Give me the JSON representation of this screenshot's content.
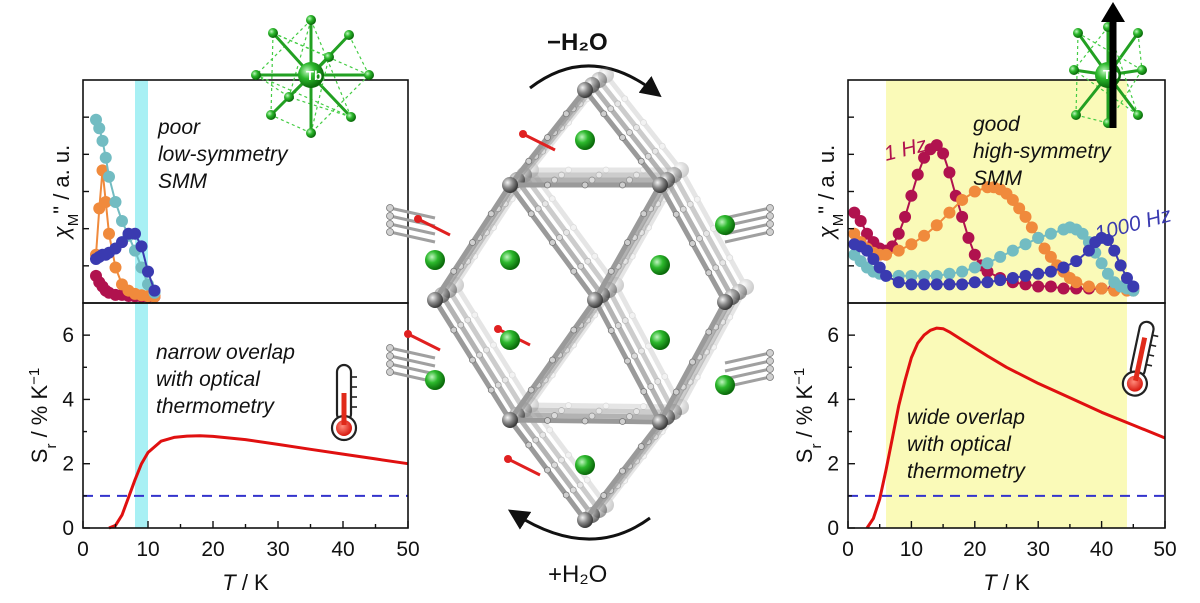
{
  "colors": {
    "freq_1hz": "#b0124e",
    "freq_mid": "#f08a3c",
    "freq_high_mid": "#72bcc2",
    "freq_1000hz": "#3a3ab0",
    "sr_curve": "#e01010",
    "threshold": "#3333cc",
    "left_band": "#a8f0f4",
    "right_band": "#fafab8",
    "tb_green": "#22b022",
    "framework_gray": "#888888"
  },
  "center": {
    "top_arrow_label": "−H₂O",
    "bottom_arrow_label": "+H₂O"
  },
  "left": {
    "chi_ylabel": "χM\" / a. u.",
    "chi_note": [
      "poor",
      "low-symmetry",
      "SMM"
    ],
    "sr_note": [
      "narrow overlap",
      "with optical",
      "thermometry"
    ],
    "tb_label": "Tb"
  },
  "right": {
    "chi_ylabel": "χM\" / a. u.",
    "chi_note": [
      "good",
      "high-symmetry",
      "SMM"
    ],
    "label_1hz": "1 Hz",
    "label_1000hz": "1000 Hz",
    "sr_note": [
      "wide overlap",
      "with optical",
      "thermometry"
    ],
    "tb_label": "Tb"
  },
  "chart_data": [
    {
      "type": "scatter",
      "panel": "left-top",
      "ylabel": "χM\" / a. u.",
      "xlim": [
        0,
        50
      ],
      "ylim": [
        0,
        1
      ],
      "shaded_x": [
        8,
        10
      ],
      "series": [
        {
          "x": [
            2,
            2.5,
            3,
            3.5,
            4,
            5,
            6,
            7,
            8,
            9,
            10,
            11
          ],
          "y": [
            0.1,
            0.07,
            0.05,
            0.03,
            0.02,
            0.01,
            0.01,
            0.005,
            0.003,
            0.002,
            0.001,
            0.001
          ],
          "color": "freq_1hz"
        },
        {
          "x": [
            2,
            2.5,
            3,
            3.5,
            4,
            5,
            6,
            7,
            8,
            9,
            10,
            11
          ],
          "y": [
            0.2,
            0.42,
            0.6,
            0.45,
            0.3,
            0.14,
            0.06,
            0.03,
            0.015,
            0.008,
            0.004,
            0.002
          ],
          "color": "freq_mid"
        },
        {
          "x": [
            2,
            2.5,
            3,
            3.5,
            4,
            5,
            6,
            7,
            8,
            9,
            10,
            11
          ],
          "y": [
            0.84,
            0.8,
            0.74,
            0.66,
            0.57,
            0.45,
            0.36,
            0.29,
            0.22,
            0.14,
            0.06,
            0.02
          ],
          "color": "freq_high_mid"
        },
        {
          "x": [
            2,
            2.5,
            3,
            3.5,
            4,
            5,
            6,
            7,
            8,
            9,
            10,
            11
          ],
          "y": [
            0.18,
            0.19,
            0.2,
            0.2,
            0.21,
            0.23,
            0.26,
            0.3,
            0.3,
            0.24,
            0.12,
            0.03
          ],
          "color": "freq_1000hz"
        }
      ]
    },
    {
      "type": "line",
      "panel": "left-bottom",
      "xlabel": "T / K",
      "ylabel": "Sr / % K⁻¹",
      "xlim": [
        0,
        50
      ],
      "ylim": [
        0,
        7
      ],
      "xticks": [
        0,
        10,
        20,
        30,
        40,
        50
      ],
      "yticks": [
        0,
        2,
        4,
        6
      ],
      "threshold": 1,
      "shaded_x": [
        8,
        10
      ],
      "series": [
        {
          "x": [
            4,
            5,
            6,
            7,
            8,
            9,
            10,
            12,
            14,
            16,
            18,
            20,
            25,
            30,
            35,
            40,
            45,
            50
          ],
          "y": [
            0,
            0.08,
            0.4,
            0.95,
            1.5,
            2.0,
            2.35,
            2.7,
            2.82,
            2.86,
            2.87,
            2.85,
            2.75,
            2.6,
            2.45,
            2.3,
            2.15,
            2.0
          ],
          "color": "sr_curve"
        }
      ]
    },
    {
      "type": "scatter",
      "panel": "right-top",
      "ylabel": "χM\" / a. u.",
      "xlim": [
        0,
        50
      ],
      "ylim": [
        0,
        1
      ],
      "shaded_x": [
        6,
        44
      ],
      "series": [
        {
          "name": "1 Hz",
          "x": [
            1,
            2,
            3,
            4,
            5,
            6,
            7,
            8,
            9,
            10,
            11,
            12,
            13,
            14,
            15,
            16,
            17,
            18,
            19,
            20,
            21,
            22,
            24,
            26,
            28,
            30,
            32,
            34,
            36,
            38,
            40,
            42,
            44,
            45
          ],
          "y": [
            0.4,
            0.36,
            0.3,
            0.26,
            0.23,
            0.22,
            0.24,
            0.3,
            0.38,
            0.48,
            0.58,
            0.66,
            0.7,
            0.72,
            0.68,
            0.59,
            0.48,
            0.38,
            0.28,
            0.2,
            0.15,
            0.12,
            0.09,
            0.07,
            0.06,
            0.05,
            0.05,
            0.04,
            0.04,
            0.04,
            0.04,
            0.04,
            0.04,
            0.04
          ],
          "color": "freq_1hz"
        },
        {
          "x": [
            1,
            2,
            3,
            4,
            5,
            6,
            8,
            10,
            12,
            14,
            16,
            18,
            20,
            22,
            23,
            24,
            25,
            26,
            27,
            28,
            29,
            30,
            31,
            32,
            33,
            34,
            35,
            36,
            38,
            40,
            42,
            44,
            45
          ],
          "y": [
            0.3,
            0.26,
            0.23,
            0.21,
            0.2,
            0.2,
            0.22,
            0.25,
            0.29,
            0.34,
            0.4,
            0.46,
            0.5,
            0.52,
            0.52,
            0.51,
            0.49,
            0.46,
            0.42,
            0.38,
            0.33,
            0.28,
            0.23,
            0.19,
            0.15,
            0.12,
            0.09,
            0.07,
            0.05,
            0.04,
            0.03,
            0.03,
            0.03
          ],
          "color": "freq_mid"
        },
        {
          "x": [
            1,
            2,
            3,
            4,
            5,
            6,
            8,
            10,
            12,
            14,
            16,
            18,
            20,
            22,
            24,
            26,
            28,
            30,
            32,
            34,
            35,
            36,
            37,
            38,
            39,
            40,
            41,
            42,
            43,
            44,
            45
          ],
          "y": [
            0.2,
            0.17,
            0.14,
            0.12,
            0.11,
            0.1,
            0.1,
            0.1,
            0.1,
            0.1,
            0.11,
            0.12,
            0.14,
            0.16,
            0.19,
            0.22,
            0.25,
            0.28,
            0.3,
            0.32,
            0.33,
            0.32,
            0.3,
            0.26,
            0.21,
            0.16,
            0.11,
            0.07,
            0.05,
            0.04,
            0.03
          ],
          "color": "freq_high_mid"
        },
        {
          "name": "1000 Hz",
          "x": [
            1,
            2,
            3,
            4,
            5,
            6,
            8,
            10,
            12,
            14,
            16,
            18,
            20,
            22,
            24,
            26,
            28,
            30,
            32,
            34,
            36,
            38,
            39,
            40,
            41,
            42,
            43,
            44,
            45
          ],
          "y": [
            0.25,
            0.24,
            0.22,
            0.18,
            0.14,
            0.1,
            0.07,
            0.06,
            0.06,
            0.06,
            0.06,
            0.06,
            0.07,
            0.07,
            0.08,
            0.09,
            0.1,
            0.11,
            0.12,
            0.14,
            0.17,
            0.22,
            0.26,
            0.28,
            0.27,
            0.22,
            0.15,
            0.09,
            0.05
          ],
          "color": "freq_1000hz"
        }
      ]
    },
    {
      "type": "line",
      "panel": "right-bottom",
      "xlabel": "T / K",
      "ylabel": "Sr / % K⁻¹",
      "xlim": [
        0,
        50
      ],
      "ylim": [
        0,
        7
      ],
      "xticks": [
        0,
        10,
        20,
        30,
        40,
        50
      ],
      "yticks": [
        0,
        2,
        4,
        6
      ],
      "threshold": 1,
      "shaded_x": [
        6,
        44
      ],
      "series": [
        {
          "x": [
            3,
            4,
            5,
            6,
            7,
            8,
            9,
            10,
            11,
            12,
            13,
            14,
            15,
            16,
            18,
            20,
            22,
            25,
            30,
            35,
            40,
            45,
            50
          ],
          "y": [
            0,
            0.3,
            0.9,
            1.8,
            2.8,
            3.8,
            4.6,
            5.3,
            5.75,
            6.0,
            6.15,
            6.22,
            6.2,
            6.1,
            5.85,
            5.6,
            5.35,
            5.0,
            4.5,
            4.05,
            3.6,
            3.2,
            2.8
          ],
          "color": "sr_curve"
        }
      ]
    }
  ]
}
